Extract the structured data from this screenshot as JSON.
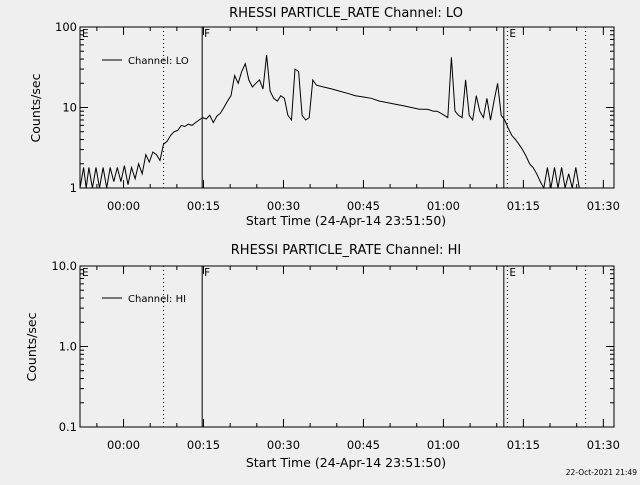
{
  "footer": {
    "timestamp": "22-Oct-2021 21:49"
  },
  "chart_data": [
    {
      "type": "line",
      "title": "RHESSI PARTICLE_RATE Channel: LO",
      "xlabel": "Start Time (24-Apr-14 23:51:50)",
      "ylabel": "Counts/sec",
      "yscale": "log",
      "ylim": [
        1,
        100
      ],
      "yticks": [
        1,
        10,
        100
      ],
      "ytick_labels": [
        "1",
        "10",
        "100"
      ],
      "xlim": [
        "23:51:50",
        "01:32:00"
      ],
      "xticks": [
        "00:00",
        "00:15",
        "00:30",
        "00:45",
        "01:00",
        "01:15",
        "01:30"
      ],
      "legend": {
        "label": "Channel: LO",
        "position": "top-left"
      },
      "grid": false,
      "markers": [
        {
          "label": "E",
          "time": "23:51:50",
          "style": "none"
        },
        {
          "label": "",
          "time": "00:07:30",
          "style": "dotted"
        },
        {
          "label": "F",
          "time": "00:14:45",
          "style": "solid"
        },
        {
          "label": "",
          "time": "01:11:20",
          "style": "solid"
        },
        {
          "label": "E",
          "time": "01:12:00",
          "style": "dotted"
        },
        {
          "label": "",
          "time": "01:26:40",
          "style": "dotted"
        }
      ],
      "series": [
        {
          "name": "Channel: LO",
          "x": [
            "23:51:50",
            "23:52:30",
            "23:53:00",
            "23:53:30",
            "23:54:10",
            "23:54:50",
            "23:55:30",
            "23:56:10",
            "23:56:50",
            "23:57:30",
            "23:58:10",
            "23:58:50",
            "23:59:30",
            "00:00:10",
            "00:00:50",
            "00:01:30",
            "00:02:10",
            "00:02:50",
            "00:03:30",
            "00:04:10",
            "00:04:50",
            "00:05:30",
            "00:06:10",
            "00:06:50",
            "00:07:30",
            "00:08:10",
            "00:08:50",
            "00:09:30",
            "00:10:10",
            "00:10:50",
            "00:11:30",
            "00:12:10",
            "00:12:50",
            "00:13:30",
            "00:14:10",
            "00:14:50",
            "00:15:30",
            "00:16:10",
            "00:16:50",
            "00:17:30",
            "00:18:10",
            "00:18:50",
            "00:19:30",
            "00:20:10",
            "00:20:50",
            "00:21:30",
            "00:22:10",
            "00:22:50",
            "00:23:30",
            "00:24:10",
            "00:24:50",
            "00:25:30",
            "00:26:10",
            "00:26:50",
            "00:27:30",
            "00:28:10",
            "00:28:50",
            "00:29:30",
            "00:30:10",
            "00:30:50",
            "00:31:30",
            "00:32:10",
            "00:32:50",
            "00:33:30",
            "00:34:10",
            "00:34:50",
            "00:35:30",
            "00:36:10",
            "00:37:30",
            "00:39:00",
            "00:40:30",
            "00:42:00",
            "00:43:30",
            "00:45:00",
            "00:46:30",
            "00:48:00",
            "00:49:30",
            "00:51:00",
            "00:52:30",
            "00:54:00",
            "00:55:30",
            "00:57:00",
            "00:58:10",
            "00:58:50",
            "00:59:30",
            "01:00:10",
            "01:00:50",
            "01:01:30",
            "01:02:10",
            "01:02:50",
            "01:03:30",
            "01:04:10",
            "01:04:50",
            "01:05:30",
            "01:06:10",
            "01:06:50",
            "01:07:30",
            "01:08:10",
            "01:08:50",
            "01:09:30",
            "01:10:10",
            "01:10:50",
            "01:11:30",
            "01:12:10",
            "01:12:50",
            "01:13:30",
            "01:14:10",
            "01:14:50",
            "01:15:30",
            "01:16:10",
            "01:16:50",
            "01:17:30",
            "01:18:10",
            "01:18:50",
            "01:19:30",
            "01:20:10",
            "01:20:50",
            "01:21:30",
            "01:22:10",
            "01:22:50",
            "01:23:30",
            "01:24:10",
            "01:24:50",
            "01:25:30"
          ],
          "values": [
            1,
            1.8,
            1,
            1.8,
            1,
            1.8,
            1,
            1.8,
            1,
            1.8,
            1.2,
            1.8,
            1.2,
            1.9,
            1.1,
            1.8,
            1.3,
            2,
            1.5,
            2.6,
            2.1,
            2.8,
            2.6,
            2.2,
            3.5,
            3.8,
            4.5,
            5,
            5.2,
            6,
            5.8,
            6.2,
            6,
            6.5,
            7,
            7.5,
            7.2,
            8,
            6.5,
            7.8,
            8.5,
            10,
            12,
            14,
            25,
            20,
            28,
            35,
            22,
            18,
            20,
            22,
            17,
            45,
            16,
            13,
            12,
            14,
            13,
            8,
            7,
            30,
            28,
            8,
            7,
            7.5,
            22,
            19,
            18,
            17,
            16,
            15,
            14,
            13.5,
            13,
            12,
            11.5,
            11,
            10.5,
            10,
            9.5,
            9.5,
            9,
            9,
            8.5,
            8,
            7.5,
            42,
            9,
            8,
            7.5,
            22,
            8,
            7,
            14,
            9,
            7.5,
            13,
            7,
            12,
            20,
            8,
            7,
            5.5,
            4.5,
            4,
            3.5,
            3,
            2.5,
            2,
            1.8,
            1.5,
            1.2,
            1,
            1.8,
            1,
            1.8,
            1,
            1.8,
            1,
            1.5,
            1,
            1.8,
            1
          ]
        }
      ]
    },
    {
      "type": "line",
      "title": "RHESSI PARTICLE_RATE Channel: HI",
      "xlabel": "Start Time (24-Apr-14 23:51:50)",
      "ylabel": "Counts/sec",
      "yscale": "log",
      "ylim": [
        0.1,
        10
      ],
      "yticks": [
        0.1,
        1,
        10
      ],
      "ytick_labels": [
        "0.1",
        "1.0",
        "10.0"
      ],
      "xlim": [
        "23:51:50",
        "01:32:00"
      ],
      "xticks": [
        "00:00",
        "00:15",
        "00:30",
        "00:45",
        "01:00",
        "01:15",
        "01:30"
      ],
      "legend": {
        "label": "Channel: HI",
        "position": "top-left"
      },
      "grid": false,
      "markers": [
        {
          "label": "E",
          "time": "23:51:50",
          "style": "none"
        },
        {
          "label": "",
          "time": "00:07:30",
          "style": "dotted"
        },
        {
          "label": "F",
          "time": "00:14:45",
          "style": "solid"
        },
        {
          "label": "",
          "time": "01:11:20",
          "style": "solid"
        },
        {
          "label": "E",
          "time": "01:12:00",
          "style": "dotted"
        },
        {
          "label": "",
          "time": "01:26:40",
          "style": "dotted"
        }
      ],
      "series": [
        {
          "name": "Channel: HI",
          "x": [],
          "values": []
        }
      ]
    }
  ]
}
